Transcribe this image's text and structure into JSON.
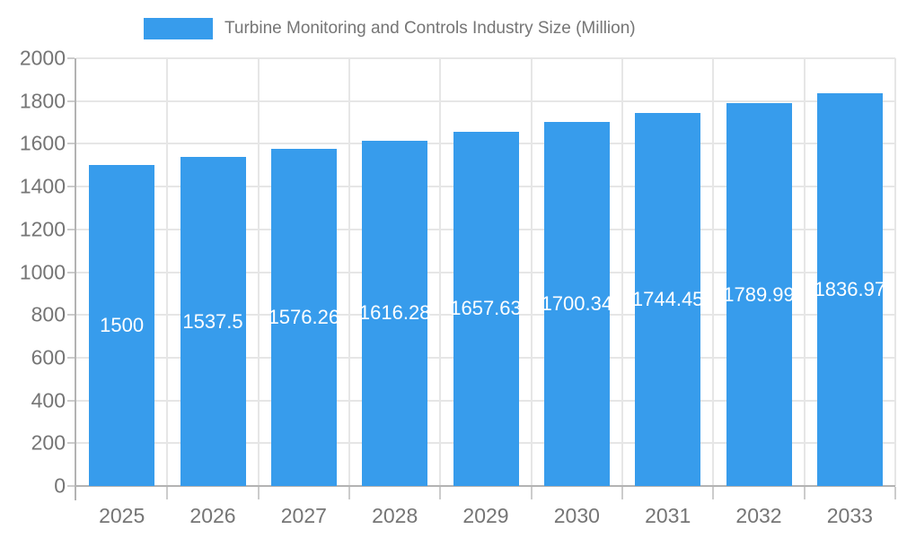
{
  "legend": {
    "label": "Turbine Monitoring and Controls Industry Size (Million)"
  },
  "colors": {
    "bar": "#379CEC",
    "grid": "#e6e6e6",
    "axis": "#b3b3b3",
    "tick": "#cccccc",
    "text": "#757575",
    "value_label": "#ffffff",
    "background": "#ffffff"
  },
  "chart_data": {
    "type": "bar",
    "title": "Turbine Monitoring and Controls Industry Size (Million)",
    "categories": [
      "2025",
      "2026",
      "2027",
      "2028",
      "2029",
      "2030",
      "2031",
      "2032",
      "2033"
    ],
    "series": [
      {
        "name": "Turbine Monitoring and Controls Industry Size (Million)",
        "values": [
          1500,
          1537.5,
          1576.26,
          1616.28,
          1657.63,
          1700.34,
          1744.45,
          1789.99,
          1836.97
        ]
      }
    ],
    "xlabel": "",
    "ylabel": "",
    "ylim": [
      0,
      2000
    ],
    "ytick_step": 200,
    "yticks": [
      "0",
      "200",
      "400",
      "600",
      "800",
      "1000",
      "1200",
      "1400",
      "1600",
      "1800",
      "2000"
    ],
    "grid": true,
    "legend_position": "top",
    "value_label_position": "center"
  }
}
